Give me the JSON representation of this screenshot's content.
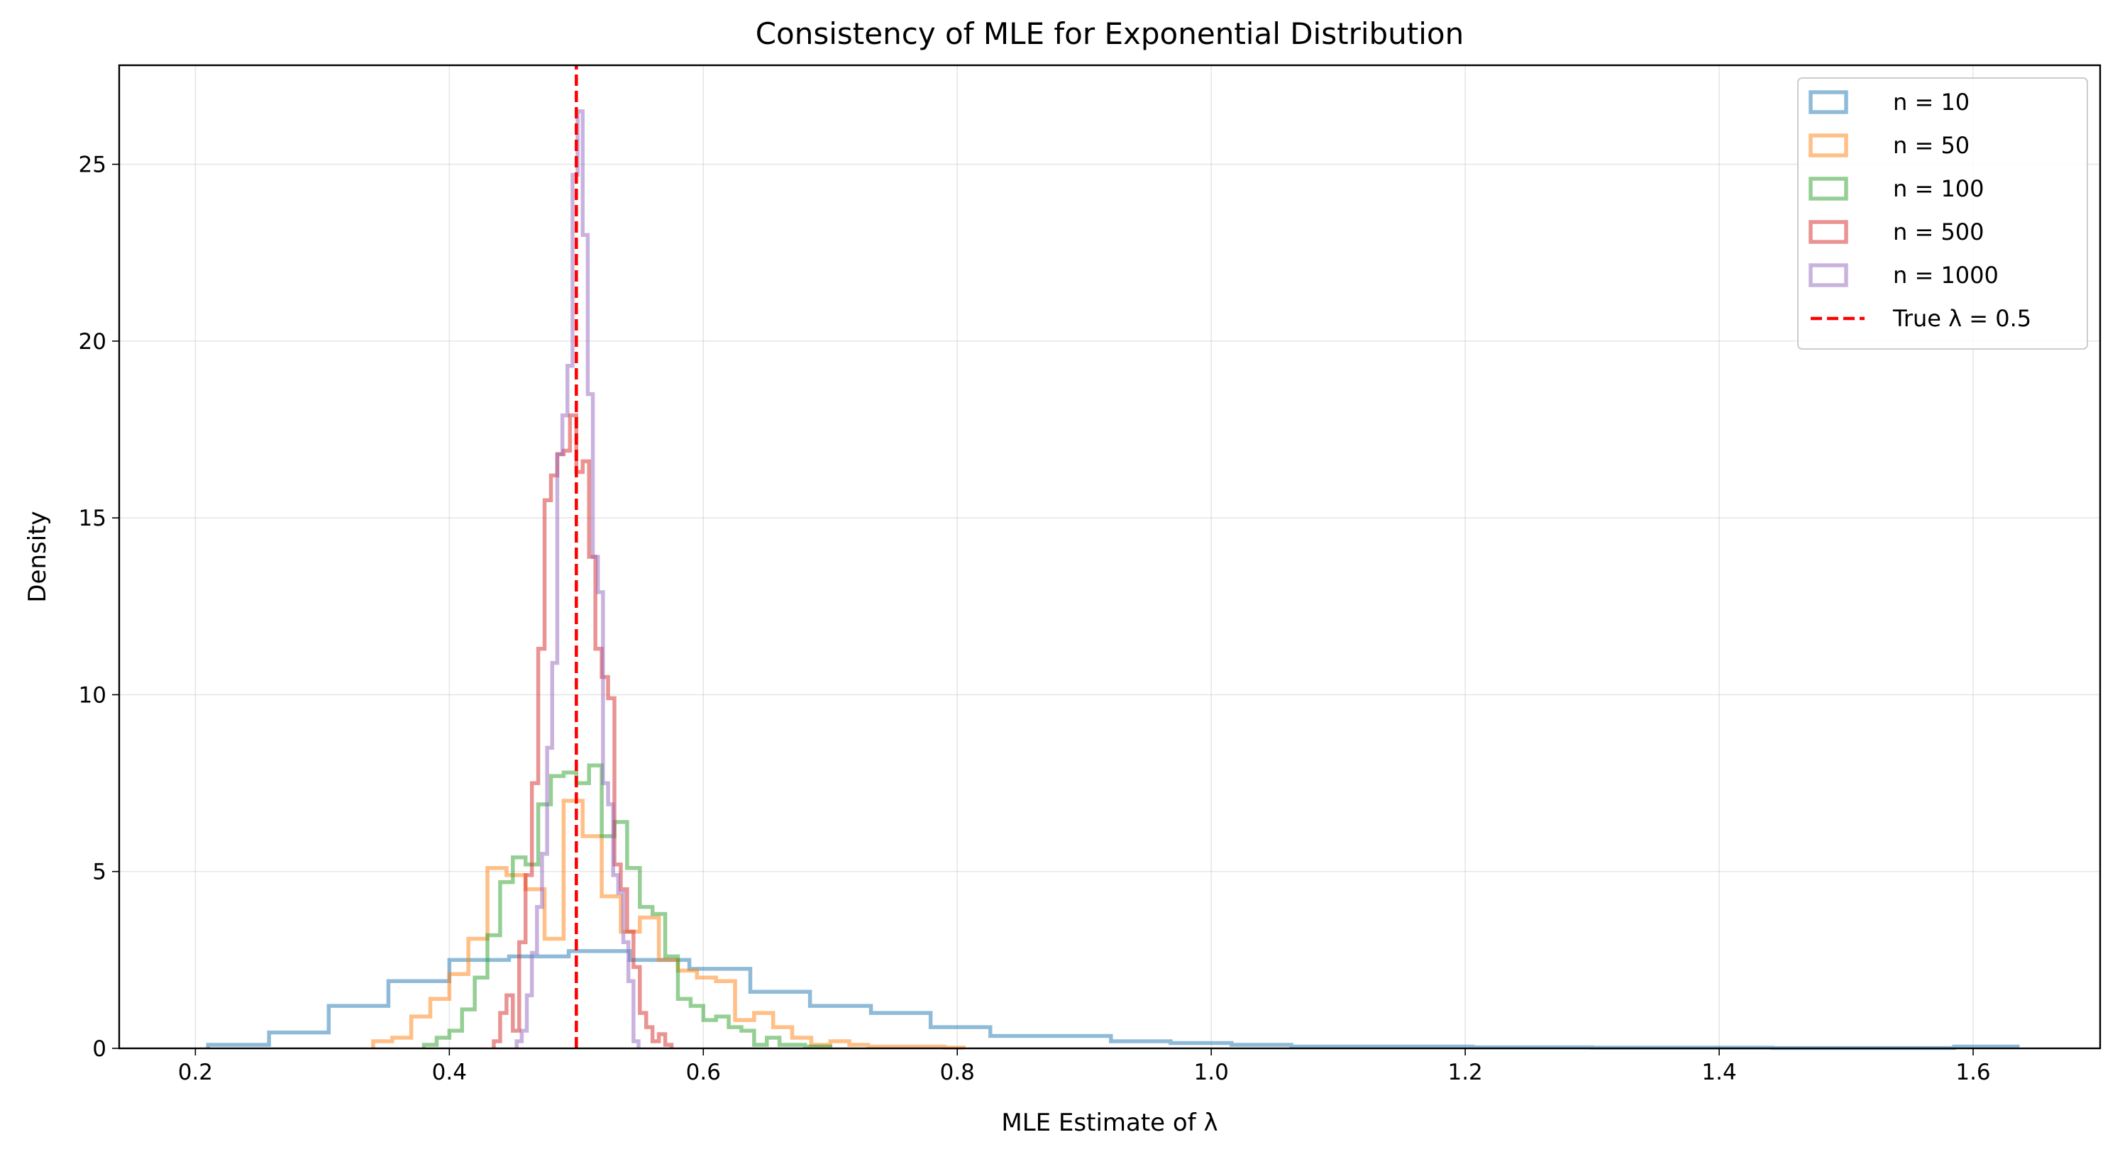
{
  "chart_data": {
    "type": "histogram",
    "title": "Consistency of MLE for Exponential Distribution",
    "xlabel": "MLE Estimate of λ",
    "ylabel": "Density",
    "xlim": [
      0.14,
      1.7
    ],
    "ylim": [
      0,
      27.8
    ],
    "xticks": [
      0.2,
      0.4,
      0.6,
      0.8,
      1.0,
      1.2,
      1.4,
      1.6
    ],
    "xtick_labels": [
      "0.2",
      "0.4",
      "0.6",
      "0.8",
      "1.0",
      "1.2",
      "1.4",
      "1.6"
    ],
    "yticks": [
      0,
      5,
      10,
      15,
      20,
      25
    ],
    "ytick_labels": [
      "0",
      "5",
      "10",
      "15",
      "20",
      "25"
    ],
    "grid": true,
    "legend_position": "top-right",
    "series": [
      {
        "name": "n = 10",
        "color": "#1f77b4",
        "edges": [
          0.21,
          0.258,
          0.305,
          0.352,
          0.4,
          0.447,
          0.494,
          0.542,
          0.589,
          0.637,
          0.684,
          0.732,
          0.779,
          0.826,
          0.874,
          0.921,
          0.968,
          1.016,
          1.063,
          1.111,
          1.158,
          1.206,
          1.253,
          1.3,
          1.348,
          1.395,
          1.442,
          1.49,
          1.537,
          1.585,
          1.635
        ],
        "values": [
          0.1,
          0.45,
          1.2,
          1.9,
          2.5,
          2.6,
          2.75,
          2.5,
          2.25,
          1.6,
          1.2,
          1.0,
          0.6,
          0.35,
          0.35,
          0.2,
          0.15,
          0.1,
          0.05,
          0.05,
          0.05,
          0.03,
          0.03,
          0.02,
          0.02,
          0.02,
          0.01,
          0.01,
          0.01,
          0.05
        ]
      },
      {
        "name": "n = 50",
        "color": "#ff7f0e",
        "edges": [
          0.34,
          0.355,
          0.37,
          0.385,
          0.4,
          0.415,
          0.43,
          0.445,
          0.46,
          0.475,
          0.49,
          0.505,
          0.52,
          0.535,
          0.55,
          0.565,
          0.58,
          0.595,
          0.61,
          0.625,
          0.64,
          0.655,
          0.67,
          0.685,
          0.7,
          0.715,
          0.73,
          0.745,
          0.76,
          0.775,
          0.79,
          0.805
        ],
        "values": [
          0.2,
          0.3,
          0.9,
          1.4,
          2.1,
          3.1,
          5.1,
          4.9,
          4.5,
          3.1,
          7.0,
          6.0,
          4.3,
          3.3,
          3.7,
          2.5,
          2.2,
          2.0,
          1.9,
          0.8,
          1.0,
          0.6,
          0.3,
          0.1,
          0.2,
          0.1,
          0.05,
          0.05,
          0.05,
          0.05,
          0.02
        ]
      },
      {
        "name": "n = 100",
        "color": "#2ca02c",
        "edges": [
          0.38,
          0.39,
          0.4,
          0.41,
          0.42,
          0.43,
          0.44,
          0.45,
          0.46,
          0.47,
          0.48,
          0.49,
          0.5,
          0.51,
          0.52,
          0.53,
          0.54,
          0.55,
          0.56,
          0.57,
          0.58,
          0.59,
          0.6,
          0.61,
          0.62,
          0.63,
          0.64,
          0.65,
          0.66,
          0.67,
          0.68,
          0.69,
          0.7
        ],
        "values": [
          0.1,
          0.3,
          0.5,
          1.1,
          2.0,
          3.2,
          4.7,
          5.4,
          5.2,
          6.9,
          7.7,
          7.8,
          7.5,
          8.0,
          6.0,
          6.4,
          5.1,
          4.0,
          3.8,
          2.6,
          1.4,
          1.2,
          0.8,
          0.9,
          0.6,
          0.5,
          0.1,
          0.3,
          0.1,
          0.1,
          0.05,
          0.05
        ]
      },
      {
        "name": "n = 500",
        "color": "#d62728",
        "edges": [
          0.435,
          0.44,
          0.445,
          0.45,
          0.455,
          0.46,
          0.465,
          0.47,
          0.475,
          0.48,
          0.485,
          0.49,
          0.495,
          0.5,
          0.505,
          0.51,
          0.515,
          0.52,
          0.525,
          0.53,
          0.535,
          0.54,
          0.545,
          0.55,
          0.555,
          0.56,
          0.565,
          0.57,
          0.575
        ],
        "values": [
          0.2,
          1.0,
          1.5,
          0.5,
          3.0,
          4.9,
          7.5,
          11.3,
          15.5,
          16.2,
          16.8,
          16.9,
          17.9,
          16.3,
          16.6,
          13.9,
          11.3,
          10.5,
          9.9,
          5.2,
          4.5,
          3.3,
          2.3,
          1.0,
          0.6,
          0.2,
          0.4,
          0.1
        ]
      },
      {
        "name": "n = 1000",
        "color": "#9467bd",
        "edges": [
          0.453,
          0.457,
          0.461,
          0.465,
          0.469,
          0.473,
          0.477,
          0.481,
          0.485,
          0.489,
          0.493,
          0.497,
          0.501,
          0.505,
          0.509,
          0.513,
          0.517,
          0.521,
          0.525,
          0.529,
          0.533,
          0.537,
          0.541,
          0.545,
          0.549
        ],
        "values": [
          0.2,
          0.5,
          1.5,
          2.7,
          4.0,
          5.5,
          8.5,
          10.9,
          16.8,
          17.9,
          19.3,
          24.7,
          26.5,
          23.0,
          18.5,
          13.9,
          12.9,
          7.5,
          6.9,
          4.9,
          4.4,
          3.0,
          1.9,
          0.2
        ]
      }
    ],
    "true_line": {
      "name": "True λ = 0.5",
      "x": 0.5,
      "color": "#ff0000"
    }
  }
}
